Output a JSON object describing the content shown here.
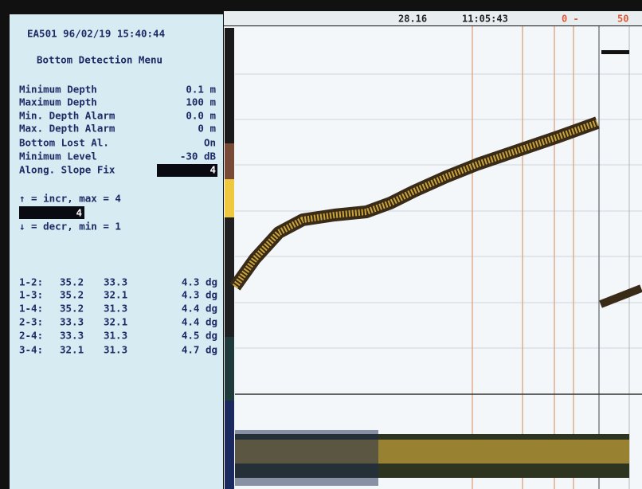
{
  "screen": {
    "left_panel": {
      "header": "EA501 96/02/19 15:40:44",
      "menu_title": "Bottom Detection Menu",
      "parameters": [
        {
          "label": "Minimum Depth",
          "value": "0.1 m"
        },
        {
          "label": "Maximum Depth",
          "value": "100 m"
        },
        {
          "label": "Min. Depth Alarm",
          "value": "0.0 m"
        },
        {
          "label": "Max. Depth Alarm",
          "value": "0 m"
        },
        {
          "label": "Bottom Lost Al.",
          "value": "On"
        },
        {
          "label": "Minimum Level",
          "value": "-30 dB"
        },
        {
          "label": "Along. Slope Fix",
          "value": "4"
        }
      ],
      "increment_hint": "↑ = incr, max = 4",
      "input_value": "4",
      "decrement_hint": "↓ = decr, min = 1",
      "angle_table": [
        [
          "1-2:",
          "35.2",
          "33.3",
          "4.3 dg"
        ],
        [
          "1-3:",
          "35.2",
          "32.1",
          "4.3 dg"
        ],
        [
          "1-4:",
          "35.2",
          "31.3",
          "4.4 dg"
        ],
        [
          "2-3:",
          "33.3",
          "32.1",
          "4.4 dg"
        ],
        [
          "2-4:",
          "33.3",
          "31.3",
          "4.5 dg"
        ],
        [
          "3-4:",
          "32.1",
          "31.3",
          "4.7 dg"
        ]
      ]
    },
    "status_bar": {
      "speed": "28.16",
      "time": "11:05:43",
      "range_start": "0 -",
      "range_end": "50"
    }
  }
}
